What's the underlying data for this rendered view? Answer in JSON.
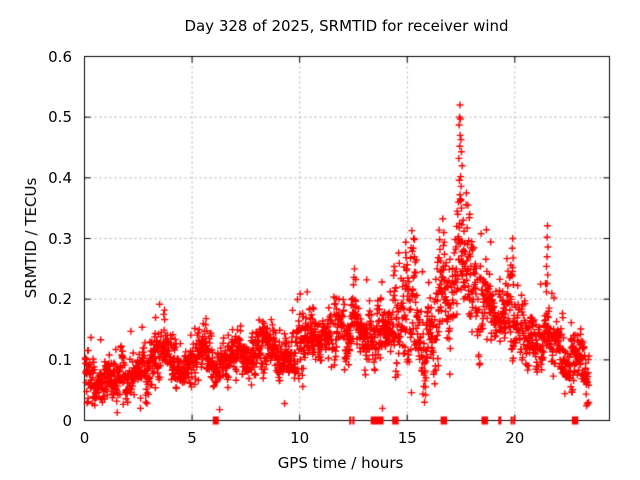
{
  "title": "Day 328 of 2025, SRMTID for receiver wind",
  "xlabel": "GPS time / hours",
  "ylabel": "SRMTID / TECUs",
  "chart_data": {
    "type": "scatter",
    "title": "Day 328 of 2025, SRMTID for receiver wind",
    "xlabel": "GPS time / hours",
    "ylabel": "SRMTID / TECUs",
    "marker": "plus",
    "marker_color": "#ff0000",
    "marker_size_px": 7,
    "background_color": "#ffffff",
    "border_color": "#000000",
    "grid": "dashed",
    "grid_color": "#b0b0b0",
    "xlim": [
      0,
      24.4
    ],
    "ylim": [
      0,
      0.6
    ],
    "xticks": [
      0,
      5,
      10,
      15,
      20
    ],
    "xtick_labels": [
      "0",
      "5",
      "10",
      "15",
      "20"
    ],
    "yticks": [
      0,
      0.1,
      0.2,
      0.3,
      0.4,
      0.5,
      0.6
    ],
    "ytick_labels": [
      "0",
      "0.1",
      "0.2",
      "0.3",
      "0.4",
      "0.5",
      "0.6"
    ],
    "x_start": 0.02,
    "x_end": 23.45,
    "seed": 328101,
    "tracks": 3,
    "dt_hours": 0.025,
    "keep_probability": 0.85,
    "ar_phi": 0.75,
    "band_envelope": [
      [
        0.0,
        0.03,
        0.12
      ],
      [
        0.7,
        0.03,
        0.11
      ],
      [
        1.3,
        0.03,
        0.1
      ],
      [
        2.0,
        0.04,
        0.12
      ],
      [
        2.7,
        0.04,
        0.13
      ],
      [
        3.3,
        0.06,
        0.15
      ],
      [
        3.7,
        0.09,
        0.18
      ],
      [
        4.1,
        0.06,
        0.14
      ],
      [
        4.6,
        0.04,
        0.1
      ],
      [
        5.1,
        0.06,
        0.13
      ],
      [
        5.6,
        0.08,
        0.16
      ],
      [
        6.1,
        0.04,
        0.1
      ],
      [
        6.6,
        0.06,
        0.14
      ],
      [
        7.1,
        0.07,
        0.16
      ],
      [
        7.6,
        0.06,
        0.13
      ],
      [
        8.1,
        0.07,
        0.15
      ],
      [
        8.7,
        0.08,
        0.17
      ],
      [
        9.2,
        0.04,
        0.12
      ],
      [
        9.7,
        0.08,
        0.16
      ],
      [
        10.3,
        0.1,
        0.2
      ],
      [
        10.8,
        0.09,
        0.17
      ],
      [
        11.3,
        0.1,
        0.19
      ],
      [
        11.8,
        0.11,
        0.2
      ],
      [
        12.3,
        0.09,
        0.18
      ],
      [
        12.7,
        0.11,
        0.21
      ],
      [
        13.2,
        0.1,
        0.2
      ],
      [
        13.7,
        0.09,
        0.19
      ],
      [
        14.2,
        0.11,
        0.22
      ],
      [
        14.7,
        0.12,
        0.26
      ],
      [
        15.2,
        0.11,
        0.27
      ],
      [
        15.7,
        0.05,
        0.2
      ],
      [
        16.2,
        0.1,
        0.24
      ],
      [
        16.7,
        0.13,
        0.29
      ],
      [
        17.1,
        0.15,
        0.3
      ],
      [
        17.45,
        0.18,
        0.34
      ],
      [
        17.8,
        0.14,
        0.3
      ],
      [
        18.2,
        0.12,
        0.26
      ],
      [
        18.7,
        0.12,
        0.27
      ],
      [
        19.2,
        0.1,
        0.22
      ],
      [
        19.7,
        0.12,
        0.25
      ],
      [
        20.0,
        0.11,
        0.24
      ],
      [
        20.4,
        0.1,
        0.2
      ],
      [
        20.9,
        0.08,
        0.18
      ],
      [
        21.3,
        0.1,
        0.2
      ],
      [
        21.6,
        0.09,
        0.19
      ],
      [
        22.0,
        0.07,
        0.16
      ],
      [
        22.4,
        0.05,
        0.14
      ],
      [
        22.9,
        0.05,
        0.13
      ],
      [
        23.45,
        0.04,
        0.12
      ]
    ],
    "peak": {
      "x": 17.45,
      "y": 0.52
    },
    "feature_points": [
      [
        17.45,
        0.52
      ],
      [
        17.43,
        0.5
      ],
      [
        17.47,
        0.497
      ],
      [
        17.41,
        0.487
      ],
      [
        17.46,
        0.47
      ],
      [
        17.5,
        0.463
      ],
      [
        17.44,
        0.452
      ],
      [
        17.52,
        0.443
      ],
      [
        17.4,
        0.432
      ],
      [
        17.55,
        0.42
      ],
      [
        17.48,
        0.402
      ],
      [
        17.42,
        0.396
      ],
      [
        17.5,
        0.386
      ],
      [
        17.45,
        0.372
      ],
      [
        17.38,
        0.36
      ],
      [
        17.52,
        0.35
      ],
      [
        17.35,
        0.34
      ],
      [
        17.6,
        0.33
      ],
      [
        17.3,
        0.32
      ],
      [
        17.64,
        0.312
      ],
      [
        17.36,
        0.3
      ],
      [
        17.56,
        0.295
      ],
      [
        17.75,
        0.375
      ],
      [
        17.82,
        0.355
      ],
      [
        17.9,
        0.34
      ],
      [
        16.5,
        0.298
      ],
      [
        16.52,
        0.282
      ],
      [
        16.48,
        0.268
      ],
      [
        16.7,
        0.31
      ],
      [
        16.72,
        0.294
      ],
      [
        15.3,
        0.3
      ],
      [
        15.28,
        0.284
      ],
      [
        15.33,
        0.27
      ],
      [
        14.6,
        0.276
      ],
      [
        14.63,
        0.259
      ],
      [
        12.55,
        0.25
      ],
      [
        12.52,
        0.236
      ],
      [
        19.9,
        0.3
      ],
      [
        19.88,
        0.284
      ],
      [
        19.92,
        0.268
      ],
      [
        19.9,
        0.252
      ],
      [
        19.87,
        0.238
      ],
      [
        19.93,
        0.224
      ],
      [
        21.52,
        0.321
      ],
      [
        21.5,
        0.302
      ],
      [
        21.54,
        0.286
      ],
      [
        21.5,
        0.27
      ],
      [
        21.47,
        0.254
      ],
      [
        21.53,
        0.24
      ],
      [
        21.5,
        0.226
      ],
      [
        21.47,
        0.212
      ],
      [
        10.35,
        0.212
      ],
      [
        3.72,
        0.182
      ],
      [
        3.68,
        0.175
      ],
      [
        5.65,
        0.168
      ],
      [
        1.52,
        0.013
      ],
      [
        2.6,
        0.02
      ],
      [
        6.28,
        0.018
      ],
      [
        9.3,
        0.028
      ],
      [
        13.85,
        0.02
      ],
      [
        15.8,
        0.03
      ],
      [
        15.85,
        0.042
      ]
    ],
    "axis_markers": [
      {
        "x": 6.1,
        "w": 0.28
      },
      {
        "x": 12.35,
        "w": 0.1
      },
      {
        "x": 12.5,
        "w": 0.1
      },
      {
        "x": 13.6,
        "w": 0.6
      },
      {
        "x": 14.45,
        "w": 0.3
      },
      {
        "x": 16.7,
        "w": 0.3
      },
      {
        "x": 18.6,
        "w": 0.3
      },
      {
        "x": 19.3,
        "w": 0.14
      },
      {
        "x": 19.85,
        "w": 0.1
      },
      {
        "x": 19.97,
        "w": 0.1
      },
      {
        "x": 22.8,
        "w": 0.3
      }
    ]
  }
}
